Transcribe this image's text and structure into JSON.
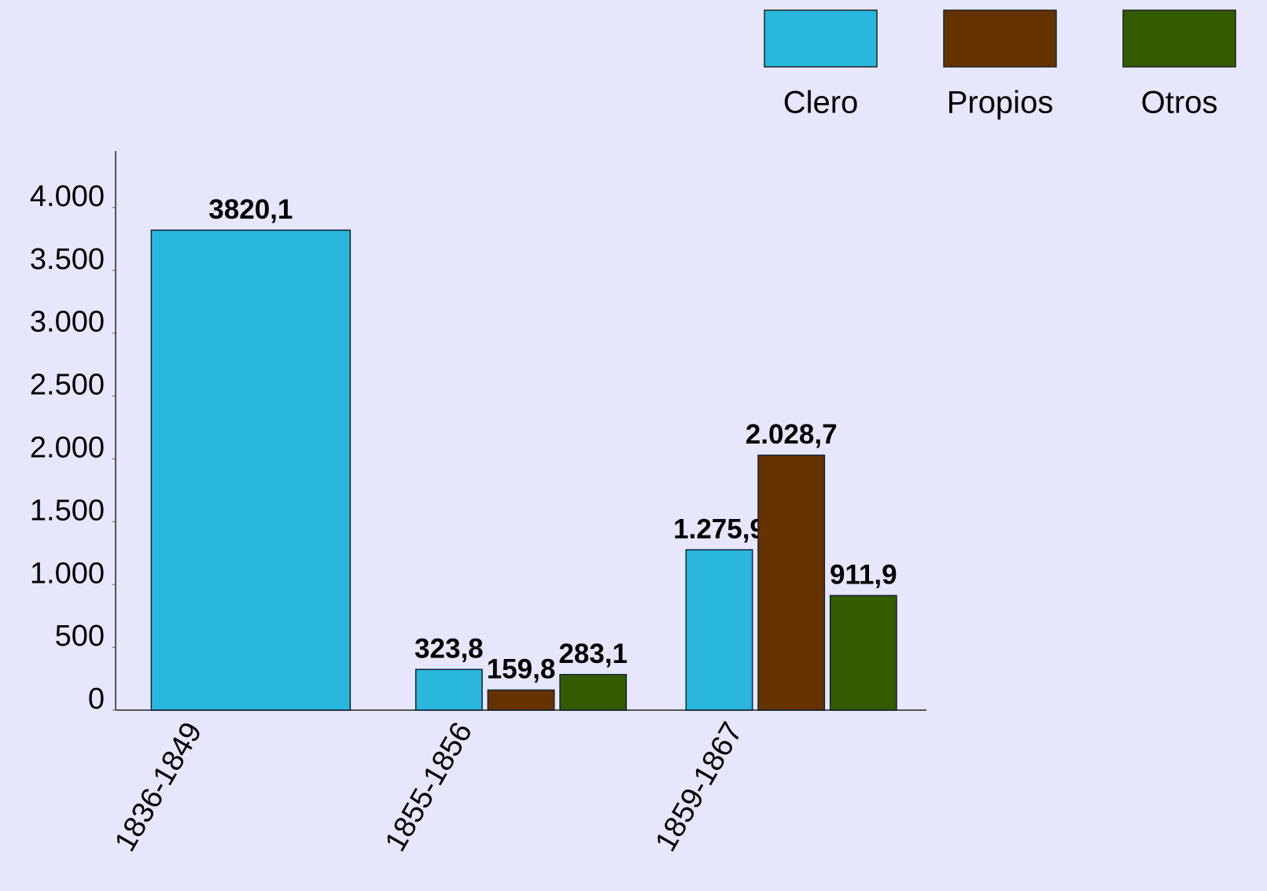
{
  "chart_data": {
    "type": "bar",
    "categories": [
      "1836-1849",
      "1855-1856",
      "1859-1867"
    ],
    "series": [
      {
        "name": "Clero",
        "color": "#29b7dd",
        "values": [
          3820.1,
          323.8,
          1275.9
        ],
        "value_labels": [
          "3820,1",
          "323,8",
          "1.275,9"
        ]
      },
      {
        "name": "Propios",
        "color": "#663300",
        "values": [
          null,
          159.8,
          2028.7
        ],
        "value_labels": [
          null,
          "159,8",
          "2.028,7"
        ]
      },
      {
        "name": "Otros",
        "color": "#335c00",
        "values": [
          null,
          283.1,
          911.9
        ],
        "value_labels": [
          null,
          "283,1",
          "911,9"
        ]
      }
    ],
    "ylim": [
      0,
      4450
    ],
    "yticks": [
      0,
      500,
      {
        "value": 1000,
        "label": "1.000"
      },
      {
        "value": 1500,
        "label": "1.500"
      },
      {
        "value": 2000,
        "label": "2.000"
      },
      {
        "value": 2500,
        "label": "2.500"
      },
      {
        "value": 3000,
        "label": "3.000"
      },
      {
        "value": 3500,
        "label": "3.500"
      },
      {
        "value": 4000,
        "label": "4.000"
      }
    ],
    "grid": false,
    "legend": "upper right"
  }
}
